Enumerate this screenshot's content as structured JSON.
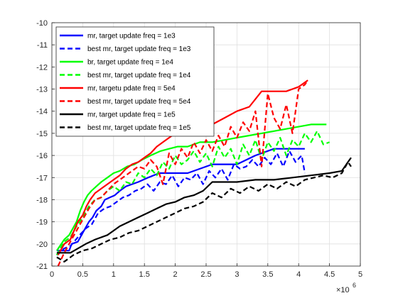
{
  "chart_data": {
    "type": "line",
    "title": "",
    "xlabel": "",
    "ylabel": "",
    "xlim": [
      0,
      5
    ],
    "ylim": [
      -21,
      -10
    ],
    "x_exponent_label": "×10",
    "x_exponent_power": "6",
    "grid": true,
    "legend_position": "top-left",
    "xticks": [
      "0",
      "0.5",
      "1",
      "1.5",
      "2",
      "2.5",
      "3",
      "3.5",
      "4",
      "4.5",
      "5"
    ],
    "yticks": [
      "-10",
      "-11",
      "-12",
      "-13",
      "-14",
      "-15",
      "-16",
      "-17",
      "-18",
      "-19",
      "-20",
      "-21"
    ],
    "series": [
      {
        "name": "mr, target update freq = 1e3",
        "color": "#0000ff",
        "style": "solid",
        "x": [
          0.08,
          0.28,
          0.32,
          0.42,
          0.5,
          0.56,
          0.6,
          0.66,
          0.72,
          0.8,
          0.86,
          0.94,
          1.02,
          1.1,
          1.2,
          1.3,
          1.4,
          1.56,
          1.74,
          1.9,
          2.0,
          2.2,
          2.6,
          3.0,
          3.3,
          3.6,
          4.1
        ],
        "y": [
          -20.3,
          -20.3,
          -20.0,
          -19.9,
          -19.5,
          -19.2,
          -19.0,
          -18.8,
          -18.5,
          -18.3,
          -18.0,
          -17.9,
          -17.8,
          -17.6,
          -17.4,
          -17.3,
          -17.2,
          -17.0,
          -16.8,
          -16.8,
          -16.8,
          -16.8,
          -16.4,
          -16.4,
          -16.0,
          -15.7,
          -15.7
        ]
      },
      {
        "name": "best mr, target update freq = 1e3",
        "color": "#0000ff",
        "style": "dashed",
        "x": [
          0.08,
          0.2,
          0.3,
          0.45,
          0.55,
          0.65,
          0.75,
          0.85,
          0.95,
          1.05,
          1.15,
          1.25,
          1.35,
          1.45,
          1.55,
          1.65,
          1.75,
          1.85,
          1.95,
          2.05,
          2.15,
          2.25,
          2.35,
          2.45,
          2.55,
          2.65,
          2.75,
          2.85,
          2.95,
          3.05,
          3.15,
          3.25,
          3.35,
          3.45,
          3.55,
          3.65,
          3.75,
          3.85,
          3.95,
          4.05,
          4.1
        ],
        "y": [
          -20.5,
          -20.2,
          -20.1,
          -19.6,
          -19.3,
          -19.1,
          -18.6,
          -18.4,
          -18.3,
          -18.1,
          -17.9,
          -17.8,
          -17.6,
          -17.5,
          -17.3,
          -17.6,
          -17.2,
          -17.3,
          -16.9,
          -17.4,
          -17.0,
          -17.1,
          -16.8,
          -17.3,
          -16.7,
          -17.0,
          -16.6,
          -17.1,
          -16.4,
          -16.6,
          -16.5,
          -16.2,
          -16.5,
          -16.1,
          -16.4,
          -15.9,
          -16.5,
          -15.8,
          -16.3,
          -16.0,
          -16.8
        ]
      },
      {
        "name": "br, target update freq = 1e4",
        "color": "#00ff00",
        "style": "solid",
        "x": [
          0.08,
          0.2,
          0.28,
          0.34,
          0.4,
          0.46,
          0.52,
          0.58,
          0.64,
          0.72,
          0.8,
          0.9,
          1.0,
          1.1,
          1.22,
          1.34,
          1.46,
          1.6,
          1.76,
          1.9,
          2.04,
          2.2,
          2.4,
          2.6,
          2.8,
          3.0,
          3.2,
          3.4,
          3.6,
          3.8,
          4.0,
          4.2,
          4.45
        ],
        "y": [
          -20.3,
          -19.8,
          -19.6,
          -19.3,
          -19.0,
          -18.5,
          -18.1,
          -17.8,
          -17.6,
          -17.4,
          -17.2,
          -17.0,
          -16.8,
          -16.7,
          -16.5,
          -16.4,
          -16.2,
          -16.0,
          -15.8,
          -15.7,
          -15.6,
          -15.6,
          -15.4,
          -15.4,
          -15.3,
          -15.2,
          -15.1,
          -15.0,
          -14.9,
          -14.8,
          -14.7,
          -14.6,
          -14.6
        ]
      },
      {
        "name": "best mr, target update freq = 1e4",
        "color": "#00ff00",
        "style": "dashed",
        "x": [
          0.08,
          0.2,
          0.3,
          0.4,
          0.5,
          0.6,
          0.7,
          0.8,
          0.9,
          1.0,
          1.1,
          1.2,
          1.3,
          1.4,
          1.5,
          1.6,
          1.7,
          1.8,
          1.9,
          2.0,
          2.1,
          2.2,
          2.3,
          2.4,
          2.5,
          2.6,
          2.7,
          2.8,
          2.9,
          3.0,
          3.1,
          3.2,
          3.3,
          3.4,
          3.5,
          3.6,
          3.7,
          3.8,
          3.9,
          4.0,
          4.1,
          4.2,
          4.3,
          4.4,
          4.5
        ],
        "y": [
          -20.5,
          -19.9,
          -19.7,
          -19.2,
          -18.8,
          -18.3,
          -18.0,
          -17.9,
          -17.6,
          -17.4,
          -17.6,
          -17.2,
          -17.3,
          -16.8,
          -17.0,
          -16.6,
          -16.9,
          -16.3,
          -16.6,
          -16.0,
          -16.4,
          -16.2,
          -15.8,
          -16.3,
          -15.9,
          -16.5,
          -15.6,
          -16.1,
          -15.7,
          -16.4,
          -15.5,
          -16.0,
          -15.3,
          -16.2,
          -15.4,
          -15.8,
          -15.2,
          -16.0,
          -15.3,
          -15.6,
          -15.0,
          -15.4,
          -14.9,
          -15.5,
          -15.4
        ]
      },
      {
        "name": "mr, targetu pdate freq = 5e4",
        "color": "#ff0000",
        "style": "solid",
        "x": [
          0.1,
          0.2,
          0.3,
          0.36,
          0.42,
          0.5,
          0.56,
          0.62,
          0.7,
          0.8,
          0.9,
          1.0,
          1.1,
          1.2,
          1.3,
          1.4,
          1.5,
          1.6,
          1.7,
          1.8,
          1.9,
          2.0,
          2.2,
          2.4,
          2.6,
          2.8,
          3.0,
          3.2,
          3.4,
          3.6,
          3.8,
          4.0,
          4.15
        ],
        "y": [
          -20.5,
          -20.0,
          -19.8,
          -19.4,
          -19.0,
          -18.7,
          -18.3,
          -18.0,
          -17.7,
          -17.5,
          -17.3,
          -17.1,
          -16.9,
          -16.6,
          -16.4,
          -16.3,
          -16.1,
          -15.9,
          -15.6,
          -15.4,
          -15.2,
          -15.0,
          -14.9,
          -14.8,
          -14.6,
          -14.3,
          -14.0,
          -13.8,
          -13.1,
          -13.1,
          -13.1,
          -12.9,
          -12.6
        ]
      },
      {
        "name": "best mr, target update freq = 5e4",
        "color": "#ff0000",
        "style": "dashed",
        "x": [
          0.1,
          0.2,
          0.3,
          0.4,
          0.5,
          0.6,
          0.7,
          0.8,
          0.9,
          1.0,
          1.1,
          1.2,
          1.3,
          1.4,
          1.5,
          1.6,
          1.7,
          1.8,
          1.9,
          2.0,
          2.1,
          2.2,
          2.3,
          2.4,
          2.5,
          2.6,
          2.7,
          2.8,
          2.9,
          3.0,
          3.1,
          3.2,
          3.3,
          3.4,
          3.5,
          3.6,
          3.7,
          3.8,
          3.9,
          4.0,
          4.1,
          4.15
        ],
        "y": [
          -21.0,
          -20.4,
          -19.9,
          -19.4,
          -18.9,
          -18.4,
          -18.0,
          -17.9,
          -17.6,
          -17.3,
          -17.1,
          -16.9,
          -16.7,
          -16.5,
          -16.6,
          -16.2,
          -16.5,
          -17.3,
          -15.9,
          -16.4,
          -15.7,
          -16.1,
          -15.4,
          -15.9,
          -15.3,
          -15.8,
          -15.1,
          -15.6,
          -14.7,
          -15.2,
          -14.5,
          -14.9,
          -14.0,
          -16.5,
          -13.2,
          -14.3,
          -14.8,
          -13.7,
          -15.0,
          -13.0,
          -12.8,
          -12.6
        ]
      },
      {
        "name": "mr, target update freq = 1e5",
        "color": "#000000",
        "style": "solid",
        "x": [
          0.08,
          0.3,
          0.55,
          0.7,
          0.9,
          1.0,
          1.1,
          1.25,
          1.4,
          1.55,
          1.7,
          1.85,
          2.0,
          2.15,
          2.3,
          2.45,
          2.6,
          2.8,
          3.0,
          3.3,
          3.6,
          3.9,
          4.2,
          4.5,
          4.7,
          4.8,
          4.85
        ],
        "y": [
          -20.4,
          -20.4,
          -20.0,
          -19.8,
          -19.6,
          -19.4,
          -19.2,
          -19.0,
          -18.8,
          -18.6,
          -18.4,
          -18.2,
          -18.1,
          -17.9,
          -17.8,
          -17.6,
          -17.2,
          -17.2,
          -17.2,
          -17.1,
          -17.1,
          -17.0,
          -16.9,
          -16.8,
          -16.7,
          -16.3,
          -16.1
        ]
      },
      {
        "name": "best mr, target update freq = 1e5",
        "color": "#000000",
        "style": "dashed",
        "x": [
          0.08,
          0.2,
          0.35,
          0.5,
          0.65,
          0.8,
          0.95,
          1.1,
          1.25,
          1.4,
          1.55,
          1.7,
          1.85,
          2.0,
          2.15,
          2.3,
          2.45,
          2.6,
          2.75,
          2.9,
          3.05,
          3.2,
          3.35,
          3.5,
          3.65,
          3.8,
          3.95,
          4.1,
          4.25,
          4.4,
          4.55,
          4.7,
          4.8,
          4.85
        ],
        "y": [
          -20.6,
          -20.8,
          -20.5,
          -20.3,
          -20.2,
          -20.0,
          -19.8,
          -19.7,
          -19.5,
          -19.4,
          -19.2,
          -19.0,
          -18.8,
          -18.6,
          -18.4,
          -18.3,
          -18.1,
          -17.7,
          -17.9,
          -17.5,
          -17.7,
          -17.4,
          -17.6,
          -17.3,
          -17.5,
          -17.2,
          -17.4,
          -17.1,
          -17.0,
          -16.9,
          -17.0,
          -16.8,
          -16.3,
          -16.5
        ]
      }
    ]
  }
}
